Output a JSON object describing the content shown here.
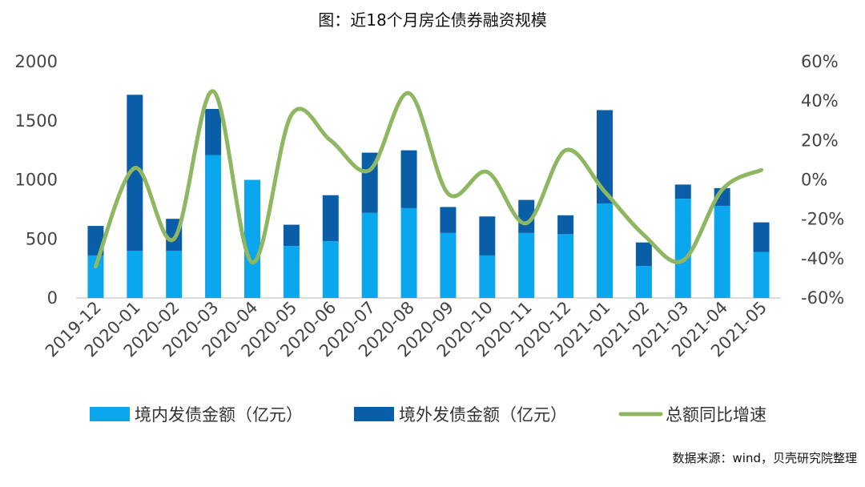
{
  "chart_data": {
    "type": "bar",
    "title": "图：近18个月房企债券融资规模",
    "source": "数据来源：wind，贝壳研究院整理",
    "categories": [
      "2019-12",
      "2020-01",
      "2020-02",
      "2020-03",
      "2020-04",
      "2020-05",
      "2020-06",
      "2020-07",
      "2020-08",
      "2020-09",
      "2020-10",
      "2020-11",
      "2020-12",
      "2021-01",
      "2021-02",
      "2021-03",
      "2021-04",
      "2021-05"
    ],
    "y_left": {
      "ylim": [
        0,
        2000
      ],
      "ticks": [
        "0",
        "500",
        "1000",
        "1500",
        "2000"
      ]
    },
    "y_right": {
      "ylim": [
        -60,
        60
      ],
      "ticks": [
        "-60%",
        "-40%",
        "-20%",
        "0%",
        "20%",
        "40%",
        "60%"
      ]
    },
    "series": [
      {
        "name": "境内发债金额（亿元）",
        "type": "bar",
        "stack": "total",
        "axis": "left",
        "color": "#0aa6ee",
        "values": [
          360,
          400,
          400,
          1210,
          1000,
          440,
          480,
          720,
          760,
          550,
          360,
          550,
          540,
          800,
          270,
          840,
          780,
          390
        ]
      },
      {
        "name": "境外发债金额（亿元）",
        "type": "bar",
        "stack": "total",
        "axis": "left",
        "color": "#0a5ea8",
        "values": [
          250,
          1320,
          270,
          390,
          0,
          180,
          390,
          510,
          490,
          220,
          330,
          280,
          160,
          790,
          200,
          120,
          150,
          250
        ]
      },
      {
        "name": "总额同比增速",
        "type": "line",
        "axis": "right",
        "color": "#8fb762",
        "values": [
          -44,
          6,
          -30,
          45,
          -42,
          33,
          20,
          5,
          44,
          -7,
          4,
          -22,
          15,
          -6,
          -28,
          -41,
          -5,
          5
        ]
      }
    ]
  }
}
